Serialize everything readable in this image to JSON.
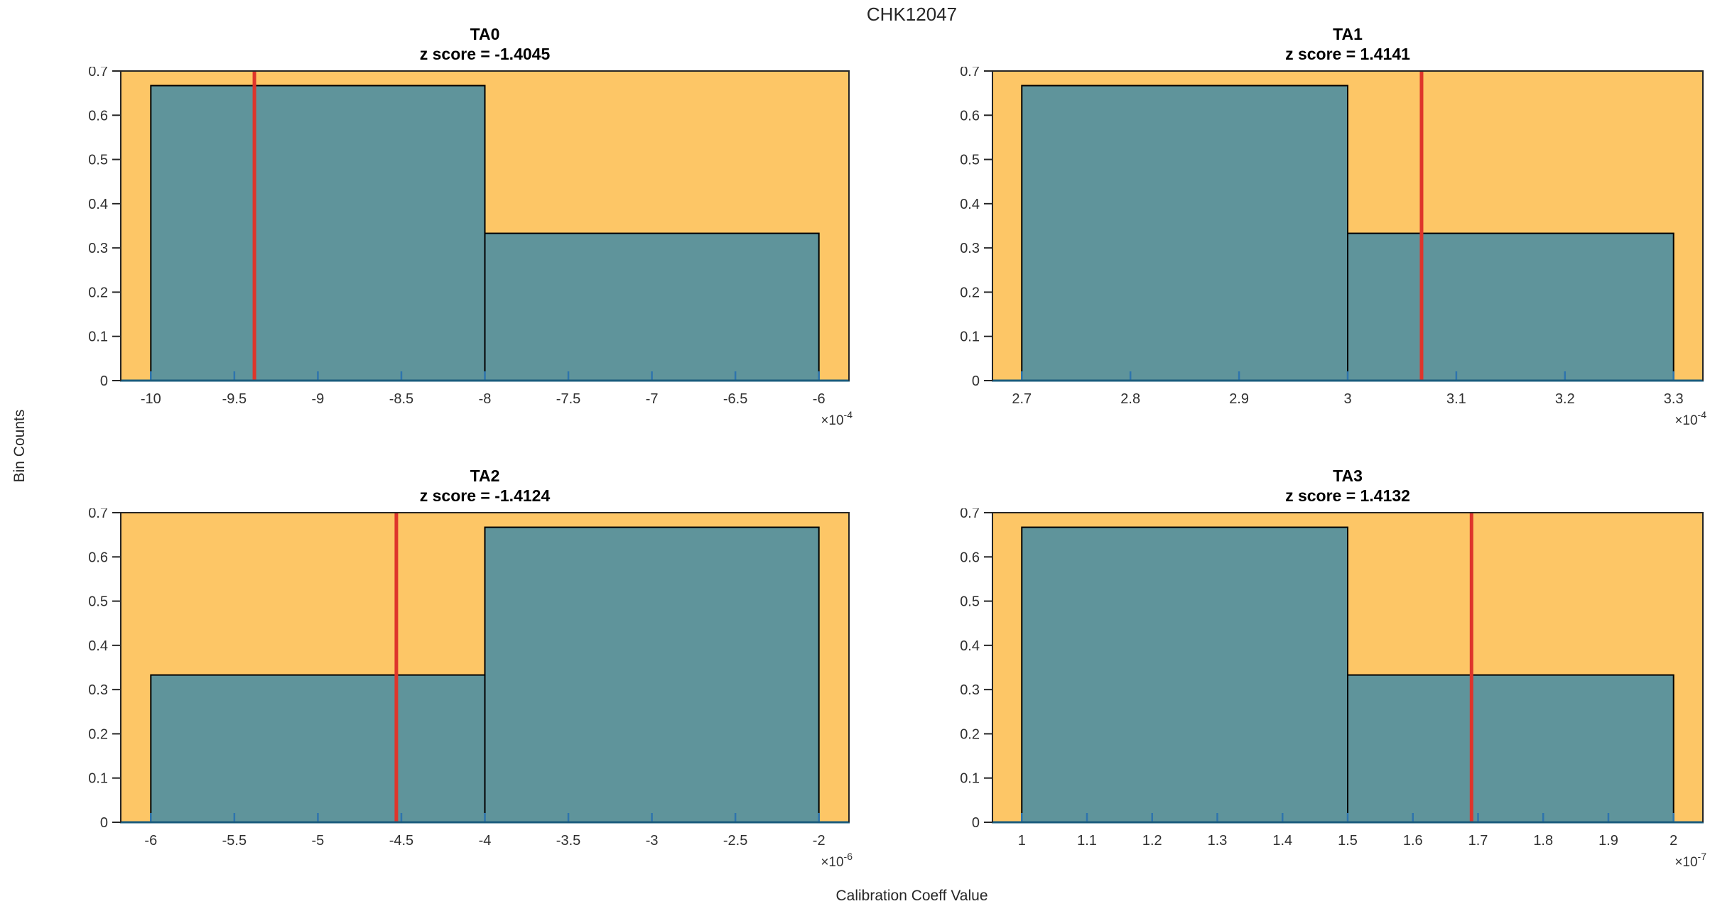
{
  "figure": {
    "title": "CHK12047",
    "xlabel": "Calibration Coeff Value",
    "ylabel": "Bin Counts"
  },
  "colors": {
    "plot_background": "#FDC666",
    "bar_fill": "#5F949B",
    "bar_edge": "#000000",
    "marker_line": "#DE352B",
    "x_axis_line": "#1B5C7D",
    "x_tick": "#2E74AD",
    "box_line": "#262626",
    "y_tick": "#262626",
    "tick_text": "#303030"
  },
  "chart_data": [
    {
      "type": "bar",
      "panel_title": "TA0",
      "subtitle": "z score = -1.4045",
      "z_score": -1.4045,
      "scale_label": {
        "base": "×10",
        "exponent": "-4"
      },
      "bars": [
        {
          "x0": -10,
          "x1": -8,
          "count": 0.667
        },
        {
          "x0": -8,
          "x1": -6,
          "count": 0.333
        }
      ],
      "marker_x": -9.38,
      "xlim": [
        -10.18,
        -5.82
      ],
      "ylim": [
        0,
        0.7
      ],
      "xticks": [
        -10,
        -9.5,
        -9,
        -8.5,
        -8,
        -7.5,
        -7,
        -6.5,
        -6
      ],
      "xtick_labels": [
        "-10",
        "-9.5",
        "-9",
        "-8.5",
        "-8",
        "-7.5",
        "-7",
        "-6.5",
        "-6"
      ],
      "yticks": [
        0,
        0.1,
        0.2,
        0.3,
        0.4,
        0.5,
        0.6,
        0.7
      ],
      "ytick_labels": [
        "0",
        "0.1",
        "0.2",
        "0.3",
        "0.4",
        "0.5",
        "0.6",
        "0.7"
      ]
    },
    {
      "type": "bar",
      "panel_title": "TA1",
      "subtitle": "z score = 1.4141",
      "z_score": 1.4141,
      "scale_label": {
        "base": "×10",
        "exponent": "-4"
      },
      "bars": [
        {
          "x0": 2.7,
          "x1": 3.0,
          "count": 0.667
        },
        {
          "x0": 3.0,
          "x1": 3.3,
          "count": 0.333
        }
      ],
      "marker_x": 3.068,
      "xlim": [
        2.673,
        3.327
      ],
      "ylim": [
        0,
        0.7
      ],
      "xticks": [
        2.7,
        2.8,
        2.9,
        3.0,
        3.1,
        3.2,
        3.3
      ],
      "xtick_labels": [
        "2.7",
        "2.8",
        "2.9",
        "3",
        "3.1",
        "3.2",
        "3.3"
      ],
      "yticks": [
        0,
        0.1,
        0.2,
        0.3,
        0.4,
        0.5,
        0.6,
        0.7
      ],
      "ytick_labels": [
        "0",
        "0.1",
        "0.2",
        "0.3",
        "0.4",
        "0.5",
        "0.6",
        "0.7"
      ]
    },
    {
      "type": "bar",
      "panel_title": "TA2",
      "subtitle": "z score = -1.4124",
      "z_score": -1.4124,
      "scale_label": {
        "base": "×10",
        "exponent": "-6"
      },
      "bars": [
        {
          "x0": -6,
          "x1": -4,
          "count": 0.333
        },
        {
          "x0": -4,
          "x1": -2,
          "count": 0.667
        }
      ],
      "marker_x": -4.53,
      "xlim": [
        -6.18,
        -1.82
      ],
      "ylim": [
        0,
        0.7
      ],
      "xticks": [
        -6,
        -5.5,
        -5,
        -4.5,
        -4,
        -3.5,
        -3,
        -2.5,
        -2
      ],
      "xtick_labels": [
        "-6",
        "-5.5",
        "-5",
        "-4.5",
        "-4",
        "-3.5",
        "-3",
        "-2.5",
        "-2"
      ],
      "yticks": [
        0,
        0.1,
        0.2,
        0.3,
        0.4,
        0.5,
        0.6,
        0.7
      ],
      "ytick_labels": [
        "0",
        "0.1",
        "0.2",
        "0.3",
        "0.4",
        "0.5",
        "0.6",
        "0.7"
      ]
    },
    {
      "type": "bar",
      "panel_title": "TA3",
      "subtitle": "z score = 1.4132",
      "z_score": 1.4132,
      "scale_label": {
        "base": "×10",
        "exponent": "-7"
      },
      "bars": [
        {
          "x0": 1.0,
          "x1": 1.5,
          "count": 0.667
        },
        {
          "x0": 1.5,
          "x1": 2.0,
          "count": 0.333
        }
      ],
      "marker_x": 1.69,
      "xlim": [
        0.955,
        2.045
      ],
      "ylim": [
        0,
        0.7
      ],
      "xticks": [
        1,
        1.1,
        1.2,
        1.3,
        1.4,
        1.5,
        1.6,
        1.7,
        1.8,
        1.9,
        2
      ],
      "xtick_labels": [
        "1",
        "1.1",
        "1.2",
        "1.3",
        "1.4",
        "1.5",
        "1.6",
        "1.7",
        "1.8",
        "1.9",
        "2"
      ],
      "yticks": [
        0,
        0.1,
        0.2,
        0.3,
        0.4,
        0.5,
        0.6,
        0.7
      ],
      "ytick_labels": [
        "0",
        "0.1",
        "0.2",
        "0.3",
        "0.4",
        "0.5",
        "0.6",
        "0.7"
      ]
    }
  ]
}
